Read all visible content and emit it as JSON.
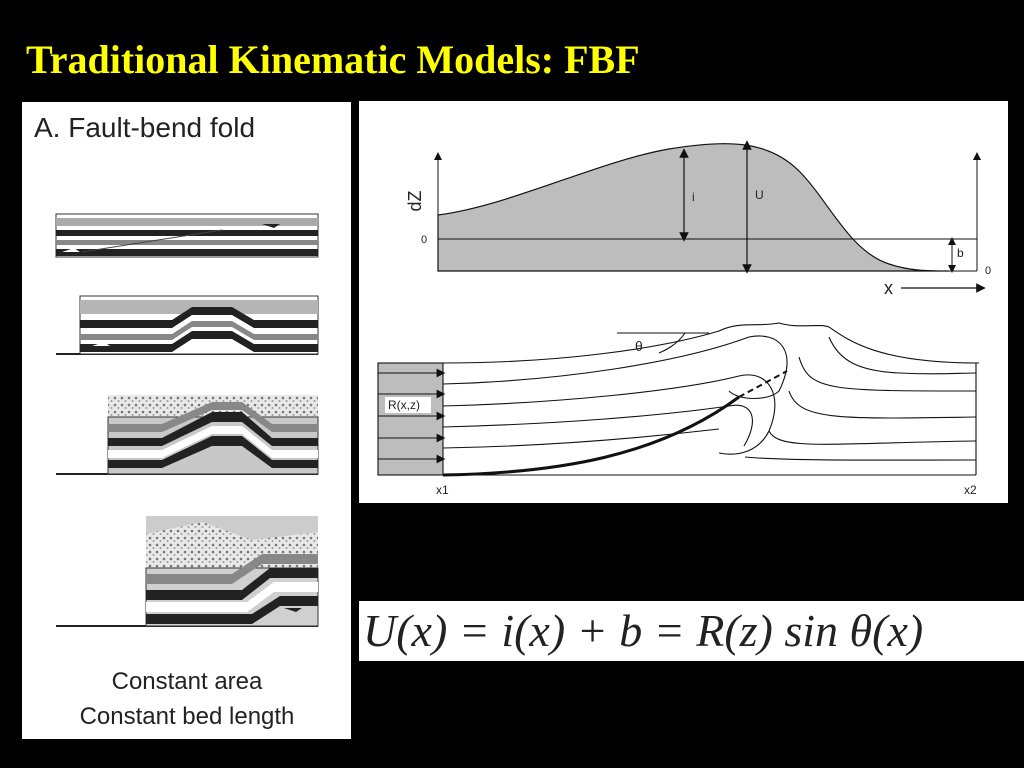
{
  "slide": {
    "title": "Traditional Kinematic Models: FBF"
  },
  "left_panel": {
    "heading": "A. Fault-bend fold",
    "caption_line1": "Constant area",
    "caption_line2": "Constant bed length"
  },
  "graph_panel": {
    "y_label": "dZ",
    "zero_left": "0",
    "zero_right": "0",
    "label_i": "i",
    "label_U": "U",
    "label_b": "b",
    "x_label": "x",
    "theta_label": "θ",
    "R_label": "R(x,z)",
    "x1_label": "x1",
    "x2_label": "x2"
  },
  "equation": {
    "text": "U(x) = i(x) + b = R(z) sin θ(x)"
  },
  "colors": {
    "title": "#ffff00",
    "background": "#000000",
    "fill_gray": "#bdbdbd"
  }
}
